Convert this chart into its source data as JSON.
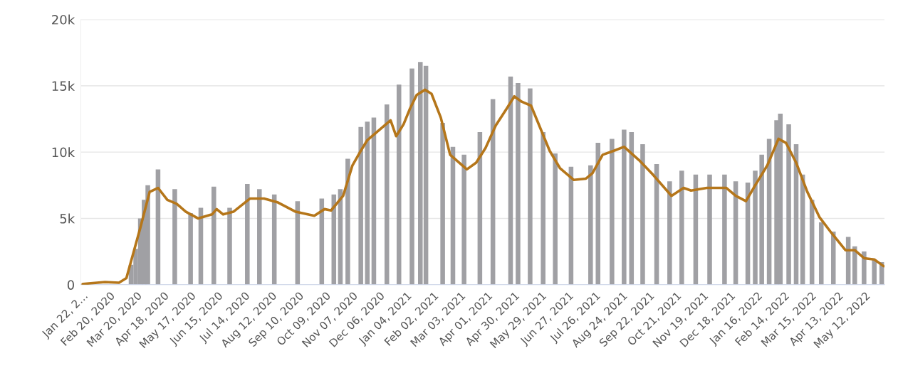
{
  "chart_data": {
    "type": "bar",
    "grid": "y",
    "legend": false,
    "xlim": [
      "2020-01-20",
      "2022-06-02"
    ],
    "xticks": [
      {
        "value": "2020-01-22",
        "label": "Jan 22, 2…"
      },
      {
        "value": "2020-02-20",
        "label": "Feb 20, 2020"
      },
      {
        "value": "2020-03-20",
        "label": "Mar 20, 2020"
      },
      {
        "value": "2020-04-18",
        "label": "Apr 18, 2020"
      },
      {
        "value": "2020-05-17",
        "label": "May 17, 2020"
      },
      {
        "value": "2020-06-15",
        "label": "Jun 15, 2020"
      },
      {
        "value": "2020-07-14",
        "label": "Jul 14, 2020"
      },
      {
        "value": "2020-08-12",
        "label": "Aug 12, 2020"
      },
      {
        "value": "2020-09-10",
        "label": "Sep 10, 2020"
      },
      {
        "value": "2020-10-09",
        "label": "Oct 09, 2020"
      },
      {
        "value": "2020-11-07",
        "label": "Nov 07, 2020"
      },
      {
        "value": "2020-12-06",
        "label": "Dec 06, 2020"
      },
      {
        "value": "2021-01-04",
        "label": "Jan 04, 2021"
      },
      {
        "value": "2021-02-02",
        "label": "Feb 02, 2021"
      },
      {
        "value": "2021-03-03",
        "label": "Mar 03, 2021"
      },
      {
        "value": "2021-04-01",
        "label": "Apr 01, 2021"
      },
      {
        "value": "2021-04-30",
        "label": "Apr 30, 2021"
      },
      {
        "value": "2021-05-29",
        "label": "May 29, 2021"
      },
      {
        "value": "2021-06-27",
        "label": "Jun 27, 2021"
      },
      {
        "value": "2021-07-26",
        "label": "Jul 26, 2021"
      },
      {
        "value": "2021-08-24",
        "label": "Aug 24, 2021"
      },
      {
        "value": "2021-09-22",
        "label": "Sep 22, 2021"
      },
      {
        "value": "2021-10-21",
        "label": "Oct 21, 2021"
      },
      {
        "value": "2021-11-19",
        "label": "Nov 19, 2021"
      },
      {
        "value": "2021-12-18",
        "label": "Dec 18, 2021"
      },
      {
        "value": "2022-01-16",
        "label": "Jan 16, 2022"
      },
      {
        "value": "2022-02-14",
        "label": "Feb 14, 2022"
      },
      {
        "value": "2022-03-15",
        "label": "Mar 15, 2022"
      },
      {
        "value": "2022-04-13",
        "label": "Apr 13, 2022"
      },
      {
        "value": "2022-05-12",
        "label": "May 12, 2022"
      }
    ],
    "ylim": [
      0,
      20000
    ],
    "yticks": [
      {
        "value": 0,
        "label": "0"
      },
      {
        "value": 5000,
        "label": "5k"
      },
      {
        "value": 10000,
        "label": "10k"
      },
      {
        "value": 15000,
        "label": "15k"
      },
      {
        "value": 20000,
        "label": "20k"
      }
    ],
    "series": [
      {
        "color": "#a0a0a4",
        "x": [
          "2020-03-14",
          "2020-03-19",
          "2020-03-24",
          "2020-03-28",
          "2020-04-01",
          "2020-04-12",
          "2020-04-30",
          "2020-05-17",
          "2020-05-28",
          "2020-06-11",
          "2020-06-28",
          "2020-07-17",
          "2020-07-30",
          "2020-08-15",
          "2020-09-09",
          "2020-10-05",
          "2020-10-18",
          "2020-10-25",
          "2020-11-02",
          "2020-11-16",
          "2020-11-23",
          "2020-11-30",
          "2020-12-14",
          "2020-12-27",
          "2021-01-10",
          "2021-01-19",
          "2021-01-25",
          "2021-02-12",
          "2021-02-23",
          "2021-03-07",
          "2021-03-24",
          "2021-04-07",
          "2021-04-26",
          "2021-05-04",
          "2021-05-17",
          "2021-05-31",
          "2021-06-13",
          "2021-06-30",
          "2021-07-21",
          "2021-07-29",
          "2021-08-13",
          "2021-08-26",
          "2021-09-03",
          "2021-09-15",
          "2021-09-30",
          "2021-10-14",
          "2021-10-27",
          "2021-11-11",
          "2021-11-26",
          "2021-12-12",
          "2021-12-24",
          "2022-01-06",
          "2022-01-14",
          "2022-01-21",
          "2022-01-29",
          "2022-02-06",
          "2022-02-10",
          "2022-02-19",
          "2022-02-27",
          "2022-03-06",
          "2022-03-16",
          "2022-03-26",
          "2022-04-08",
          "2022-04-24",
          "2022-05-01",
          "2022-05-11",
          "2022-05-22",
          "2022-05-30"
        ],
        "values": [
          1500,
          2700,
          5000,
          6400,
          7500,
          8700,
          7200,
          5400,
          5800,
          7400,
          5800,
          7600,
          7200,
          6800,
          6300,
          6500,
          6800,
          7200,
          9500,
          11900,
          12300,
          12600,
          13600,
          15100,
          16300,
          16800,
          16500,
          12200,
          10400,
          9800,
          11500,
          14000,
          15700,
          15200,
          14800,
          11500,
          9900,
          8900,
          9000,
          10700,
          11000,
          11700,
          11500,
          10600,
          9100,
          7800,
          8600,
          8300,
          8300,
          8300,
          7800,
          7700,
          8600,
          9800,
          11000,
          12400,
          12900,
          12100,
          10600,
          8300,
          6400,
          4700,
          4000,
          3600,
          2900,
          2500,
          1900,
          1700
        ]
      },
      {
        "type": "line",
        "color": "#b5761a",
        "x": [
          "2020-01-22",
          "2020-02-15",
          "2020-03-01",
          "2020-03-09",
          "2020-03-24",
          "2020-04-03",
          "2020-04-12",
          "2020-04-22",
          "2020-05-02",
          "2020-05-12",
          "2020-05-25",
          "2020-06-09",
          "2020-06-14",
          "2020-06-21",
          "2020-07-02",
          "2020-07-20",
          "2020-08-04",
          "2020-08-19",
          "2020-09-07",
          "2020-09-27",
          "2020-10-08",
          "2020-10-15",
          "2020-10-28",
          "2020-11-07",
          "2020-11-16",
          "2020-11-23",
          "2020-12-03",
          "2020-12-18",
          "2020-12-24",
          "2021-01-01",
          "2021-01-08",
          "2021-01-15",
          "2021-01-24",
          "2021-01-31",
          "2021-02-10",
          "2021-02-20",
          "2021-03-10",
          "2021-03-20",
          "2021-03-30",
          "2021-04-10",
          "2021-04-22",
          "2021-04-30",
          "2021-05-08",
          "2021-05-18",
          "2021-05-28",
          "2021-06-07",
          "2021-06-18",
          "2021-07-03",
          "2021-07-16",
          "2021-07-23",
          "2021-08-03",
          "2021-08-15",
          "2021-08-26",
          "2021-09-11",
          "2021-09-26",
          "2021-10-16",
          "2021-10-29",
          "2021-11-06",
          "2021-11-23",
          "2021-12-14",
          "2021-12-24",
          "2022-01-04",
          "2022-01-14",
          "2022-01-27",
          "2022-02-08",
          "2022-02-16",
          "2022-02-27",
          "2022-03-11",
          "2022-03-24",
          "2022-04-06",
          "2022-04-21",
          "2022-05-01",
          "2022-05-11",
          "2022-05-22",
          "2022-06-01"
        ],
        "values": [
          50,
          200,
          150,
          500,
          4300,
          7000,
          7300,
          6400,
          6100,
          5500,
          5000,
          5300,
          5700,
          5300,
          5500,
          6500,
          6500,
          6200,
          5500,
          5200,
          5700,
          5600,
          6700,
          9000,
          10100,
          10900,
          11500,
          12400,
          11200,
          12100,
          13300,
          14300,
          14700,
          14400,
          12600,
          9800,
          8700,
          9200,
          10300,
          12000,
          13300,
          14200,
          13800,
          13500,
          11800,
          10100,
          8800,
          7900,
          8000,
          8400,
          9800,
          10100,
          10400,
          9400,
          8300,
          6700,
          7300,
          7100,
          7300,
          7300,
          6700,
          6300,
          7500,
          9000,
          11000,
          10700,
          9200,
          7000,
          5100,
          3900,
          2600,
          2600,
          2000,
          1900,
          1400
        ]
      }
    ]
  }
}
